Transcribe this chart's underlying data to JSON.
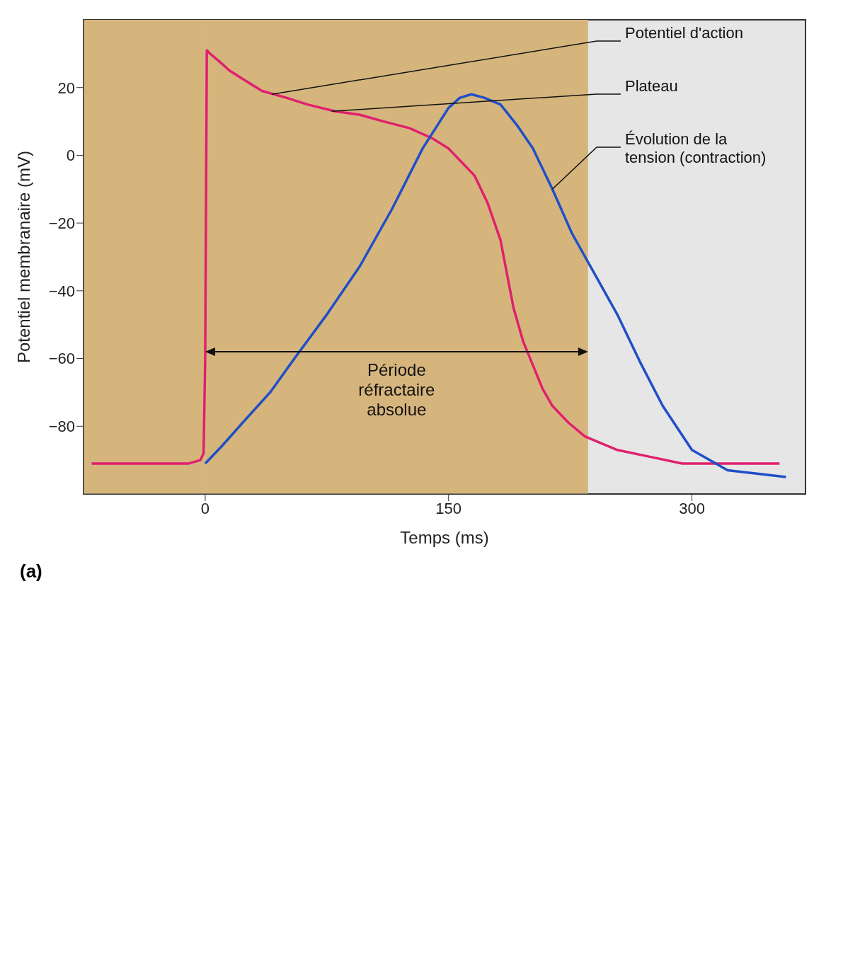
{
  "chart_data": {
    "type": "line",
    "xlabel": "Temps (ms)",
    "ylabel": "Potentiel membranaire (mV)",
    "xlim": [
      -75,
      370
    ],
    "xticks": [
      0,
      150,
      300
    ],
    "ylim": [
      -100,
      40
    ],
    "yticks": [
      20,
      0,
      -20,
      -40,
      -60,
      -80
    ],
    "marker": "none",
    "line_style": "solid",
    "series": [
      {
        "color": "#e0206f",
        "x": [
          -70,
          -40,
          -10,
          -3,
          -1,
          0,
          1,
          3,
          8,
          15,
          25,
          35,
          50,
          63,
          80,
          95,
          110,
          126,
          140,
          150,
          158,
          166,
          174,
          182,
          190,
          196,
          202,
          208,
          214,
          224,
          234,
          254,
          274,
          294,
          320,
          354
        ],
        "values": [
          -91,
          -91,
          -91,
          -90,
          -88,
          -60,
          31,
          30,
          28,
          25,
          22,
          19,
          17,
          15,
          13,
          12,
          10,
          8,
          5,
          2,
          -2,
          -6,
          -14,
          -25,
          -45,
          -55,
          -62,
          -69,
          -74,
          -79,
          -83,
          -87,
          -89,
          -91,
          -91,
          -91
        ]
      },
      {
        "color": "#1f4fc8",
        "x": [
          0,
          10,
          23,
          40,
          55,
          75,
          95,
          115,
          134,
          150,
          157,
          164,
          172,
          182,
          192,
          202,
          214,
          226,
          240,
          254,
          268,
          282,
          300,
          322,
          340,
          358
        ],
        "values": [
          -91,
          -86,
          -79,
          -70,
          -60,
          -47,
          -33,
          -16,
          2,
          14,
          17,
          18,
          17,
          15,
          9,
          2,
          -10,
          -23,
          -35,
          -47,
          -61,
          -74,
          -87,
          -93,
          -94,
          -95
        ]
      }
    ],
    "bands": [
      {
        "axis": "x",
        "from": -75,
        "to": 0,
        "color": "#d6b57d"
      },
      {
        "axis": "x",
        "from": 0,
        "to": 236,
        "color": "#d6b57d",
        "label": "Période réfractaire absolue"
      }
    ],
    "annotations": [
      {
        "text": "Potentiel d'action",
        "x": 41,
        "y": 18
      },
      {
        "text": "Plateau",
        "x": 78,
        "y": 13
      },
      {
        "text": "Évolution de la tension (contraction)",
        "x": 214,
        "y": -10
      },
      "(a)"
    ]
  }
}
